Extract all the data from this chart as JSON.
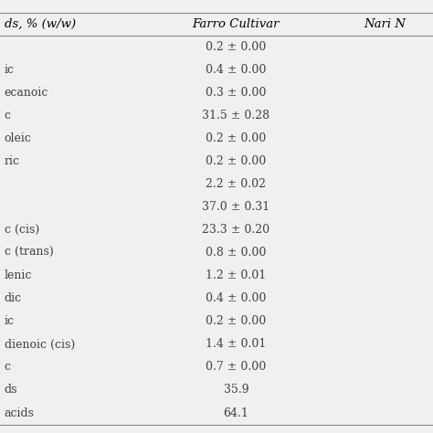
{
  "col1_header": "ds, % (w/w)",
  "col2_header": "Farro Cultivar",
  "col3_header": "Nari N",
  "row_labels": [
    "",
    "ic",
    "ecanoic",
    "c",
    "oleic",
    "ric",
    "",
    "",
    "c (cis)",
    "c (trans)",
    "lenic",
    "dic",
    "ic",
    "dienoic (cis)",
    "c",
    "ds",
    "acids"
  ],
  "col2_values": [
    "0.2 ± 0.00",
    "0.4 ± 0.00",
    "0.3 ± 0.00",
    "31.5 ± 0.28",
    "0.2 ± 0.00",
    "0.2 ± 0.00",
    "2.2 ± 0.02",
    "37.0 ± 0.31",
    "23.3 ± 0.20",
    "0.8 ± 0.00",
    "1.2 ± 0.01",
    "0.4 ± 0.00",
    "0.2 ± 0.00",
    "1.4 ± 0.01",
    "0.7 ± 0.00",
    "35.9",
    "64.1"
  ],
  "header_text_color": "#000000",
  "body_text_color": "#404040",
  "background_color": "#f0f0f0",
  "line_color": "#888888",
  "body_font_size": 9.0,
  "header_font_size": 9.5,
  "fig_width": 4.74,
  "fig_height": 4.74,
  "dpi": 100
}
